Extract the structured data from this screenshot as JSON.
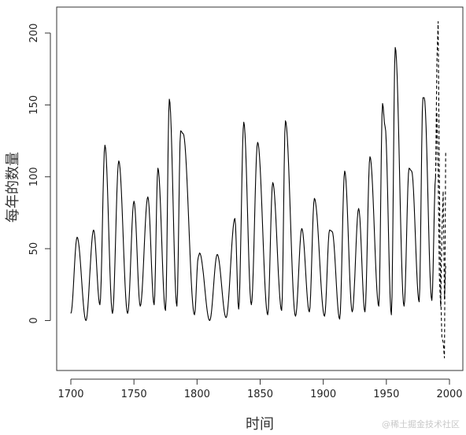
{
  "chart_data": {
    "type": "line",
    "title": "",
    "xlabel": "时间",
    "ylabel": "每年的数量",
    "xlim": [
      1700,
      2000
    ],
    "ylim": [
      -35,
      218
    ],
    "x_ticks": [
      1700,
      1750,
      1800,
      1850,
      1900,
      1950,
      2000
    ],
    "y_ticks": [
      0,
      50,
      100,
      150,
      200
    ],
    "grid": false,
    "series": [
      {
        "style": "solid",
        "color": "#000000",
        "peaks": [
          [
            1700,
            5
          ],
          [
            1705,
            58
          ],
          [
            1712,
            0
          ],
          [
            1718,
            63
          ],
          [
            1723,
            11
          ],
          [
            1727,
            122
          ],
          [
            1733,
            5
          ],
          [
            1738,
            111
          ],
          [
            1745,
            5
          ],
          [
            1750,
            83
          ],
          [
            1755,
            10
          ],
          [
            1761,
            86
          ],
          [
            1766,
            11
          ],
          [
            1769,
            106
          ],
          [
            1775,
            7
          ],
          [
            1778,
            154
          ],
          [
            1784,
            10
          ],
          [
            1787,
            132
          ],
          [
            1789,
            130
          ],
          [
            1798,
            4
          ],
          [
            1801,
            44
          ],
          [
            1802,
            47
          ],
          [
            1810,
            0
          ],
          [
            1816,
            46
          ],
          [
            1823,
            2
          ],
          [
            1830,
            71
          ],
          [
            1833,
            8
          ],
          [
            1837,
            138
          ],
          [
            1843,
            11
          ],
          [
            1848,
            124
          ],
          [
            1856,
            4
          ],
          [
            1860,
            96
          ],
          [
            1867,
            7
          ],
          [
            1870,
            139
          ],
          [
            1878,
            3
          ],
          [
            1883,
            64
          ],
          [
            1889,
            6
          ],
          [
            1893,
            85
          ],
          [
            1901,
            3
          ],
          [
            1905,
            63
          ],
          [
            1907,
            62
          ],
          [
            1913,
            1
          ],
          [
            1917,
            104
          ],
          [
            1923,
            6
          ],
          [
            1928,
            78
          ],
          [
            1933,
            6
          ],
          [
            1937,
            114
          ],
          [
            1944,
            10
          ],
          [
            1947,
            151
          ],
          [
            1949,
            135
          ],
          [
            1954,
            4
          ],
          [
            1957,
            190
          ],
          [
            1964,
            10
          ],
          [
            1968,
            106
          ],
          [
            1970,
            104
          ],
          [
            1976,
            13
          ],
          [
            1979,
            155
          ],
          [
            1980,
            155
          ],
          [
            1986,
            14
          ],
          [
            1989,
            100
          ]
        ]
      },
      {
        "style": "dashed",
        "color": "#000000",
        "peaks": [
          [
            1989,
            100
          ],
          [
            1990,
            180
          ],
          [
            1991,
            208
          ],
          [
            1992,
            95
          ],
          [
            1993,
            20
          ],
          [
            1994,
            -12
          ],
          [
            1995,
            -15
          ],
          [
            1996,
            -26
          ],
          [
            1997,
            118
          ]
        ]
      },
      {
        "style": "dashed",
        "color": "#000000",
        "peaks": [
          [
            1989,
            100
          ],
          [
            1990,
            145
          ],
          [
            1991,
            105
          ],
          [
            1992,
            30
          ],
          [
            1993,
            10
          ],
          [
            1994,
            60
          ],
          [
            1995,
            90
          ],
          [
            1996,
            15
          ],
          [
            1997,
            38
          ]
        ]
      }
    ]
  },
  "watermark": "@稀土掘金技术社区"
}
